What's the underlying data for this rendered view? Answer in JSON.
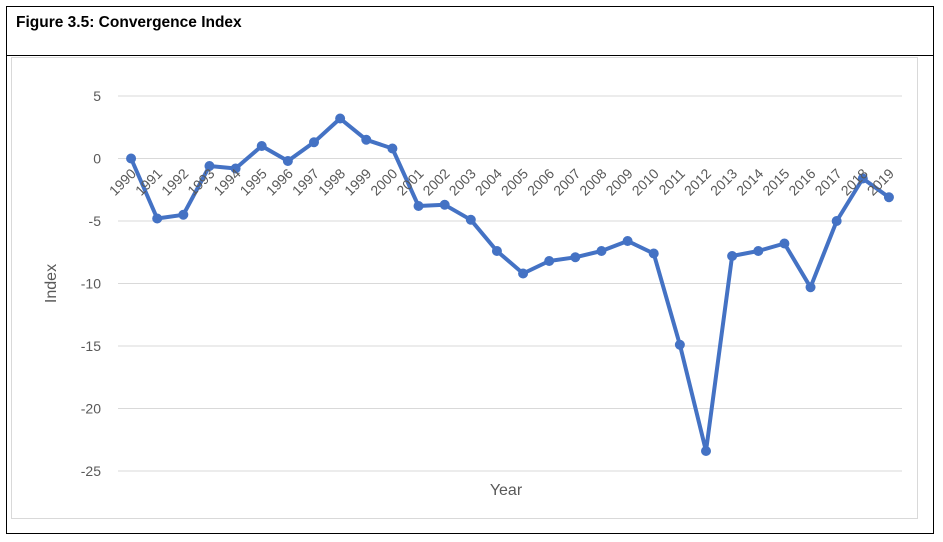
{
  "figure": {
    "title": "Figure 3.5: Convergence Index"
  },
  "chart_data": {
    "type": "line",
    "title": "",
    "xlabel": "Year",
    "ylabel": "Index",
    "ylim": [
      -25,
      5
    ],
    "yticks": [
      5,
      0,
      -5,
      -10,
      -15,
      -20,
      -25
    ],
    "grid": true,
    "legend": "none",
    "line_color": "#4472c4",
    "grid_color": "#d9d9d9",
    "x": [
      "1990",
      "1991",
      "1992",
      "1993",
      "1994",
      "1995",
      "1996",
      "1997",
      "1998",
      "1999",
      "2000",
      "2001",
      "2002",
      "2003",
      "2004",
      "2005",
      "2006",
      "2007",
      "2008",
      "2009",
      "2010",
      "2011",
      "2012",
      "2013",
      "2014",
      "2015",
      "2016",
      "2017",
      "2018",
      "2019"
    ],
    "series": [
      {
        "name": "",
        "values": [
          0.0,
          -4.8,
          -4.5,
          -0.6,
          -0.8,
          1.0,
          -0.2,
          1.3,
          3.2,
          1.5,
          0.8,
          -3.8,
          -3.7,
          -4.9,
          -7.4,
          -9.2,
          -8.2,
          -7.9,
          -7.4,
          -6.6,
          -7.6,
          -14.9,
          -23.4,
          -7.8,
          -7.4,
          -6.8,
          -10.3,
          -5.0,
          -1.6,
          -3.1
        ]
      }
    ]
  }
}
